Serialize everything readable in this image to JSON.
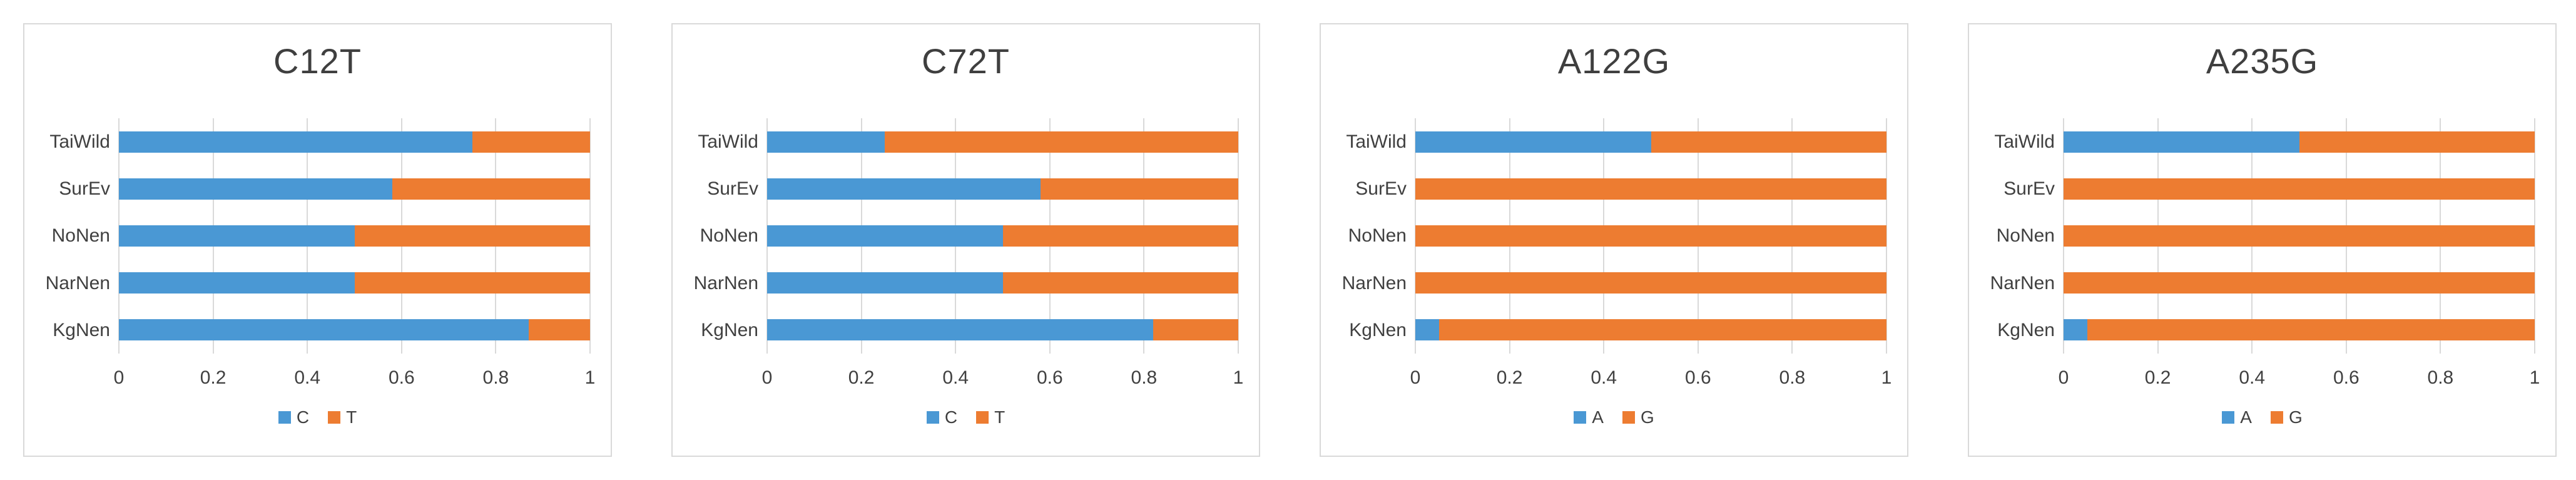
{
  "colors": {
    "series_blue": "#4a98d4",
    "series_orange": "#ed7c31",
    "panel_border": "#d9d9d9",
    "gridline": "#d9d9d9",
    "text": "#404040",
    "title_text": "#3f3f3f"
  },
  "chart_data": [
    {
      "type": "bar",
      "orientation": "horizontal",
      "stacked": true,
      "title": "C12T",
      "categories": [
        "TaiWild",
        "SurEv",
        "NoNen",
        "NarNen",
        "KgNen"
      ],
      "series": [
        {
          "name": "C",
          "color_key": "series_blue",
          "values": [
            0.75,
            0.58,
            0.5,
            0.5,
            0.87
          ]
        },
        {
          "name": "T",
          "color_key": "series_orange",
          "values": [
            0.25,
            0.42,
            0.5,
            0.5,
            0.13
          ]
        }
      ],
      "xlim": [
        0,
        1
      ],
      "x_ticks": [
        "0",
        "0.2",
        "0.4",
        "0.6",
        "0.8",
        "1"
      ],
      "grid": true,
      "legend_position": "bottom"
    },
    {
      "type": "bar",
      "orientation": "horizontal",
      "stacked": true,
      "title": "C72T",
      "categories": [
        "TaiWild",
        "SurEv",
        "NoNen",
        "NarNen",
        "KgNen"
      ],
      "series": [
        {
          "name": "C",
          "color_key": "series_blue",
          "values": [
            0.25,
            0.58,
            0.5,
            0.5,
            0.82
          ]
        },
        {
          "name": "T",
          "color_key": "series_orange",
          "values": [
            0.75,
            0.42,
            0.5,
            0.5,
            0.18
          ]
        }
      ],
      "xlim": [
        0,
        1
      ],
      "x_ticks": [
        "0",
        "0.2",
        "0.4",
        "0.6",
        "0.8",
        "1"
      ],
      "grid": true,
      "legend_position": "bottom"
    },
    {
      "type": "bar",
      "orientation": "horizontal",
      "stacked": true,
      "title": "A122G",
      "categories": [
        "TaiWild",
        "SurEv",
        "NoNen",
        "NarNen",
        "KgNen"
      ],
      "series": [
        {
          "name": "A",
          "color_key": "series_blue",
          "values": [
            0.5,
            0,
            0,
            0,
            0.05
          ]
        },
        {
          "name": "G",
          "color_key": "series_orange",
          "values": [
            0.5,
            1,
            1,
            1,
            0.95
          ]
        }
      ],
      "xlim": [
        0,
        1
      ],
      "x_ticks": [
        "0",
        "0.2",
        "0.4",
        "0.6",
        "0.8",
        "1"
      ],
      "grid": true,
      "legend_position": "bottom"
    },
    {
      "type": "bar",
      "orientation": "horizontal",
      "stacked": true,
      "title": "A235G",
      "categories": [
        "TaiWild",
        "SurEv",
        "NoNen",
        "NarNen",
        "KgNen"
      ],
      "series": [
        {
          "name": "A",
          "color_key": "series_blue",
          "values": [
            0.5,
            0,
            0,
            0,
            0.05
          ]
        },
        {
          "name": "G",
          "color_key": "series_orange",
          "values": [
            0.5,
            1,
            1,
            1,
            0.95
          ]
        }
      ],
      "xlim": [
        0,
        1
      ],
      "x_ticks": [
        "0",
        "0.2",
        "0.4",
        "0.6",
        "0.8",
        "1"
      ],
      "grid": true,
      "legend_position": "bottom"
    }
  ]
}
